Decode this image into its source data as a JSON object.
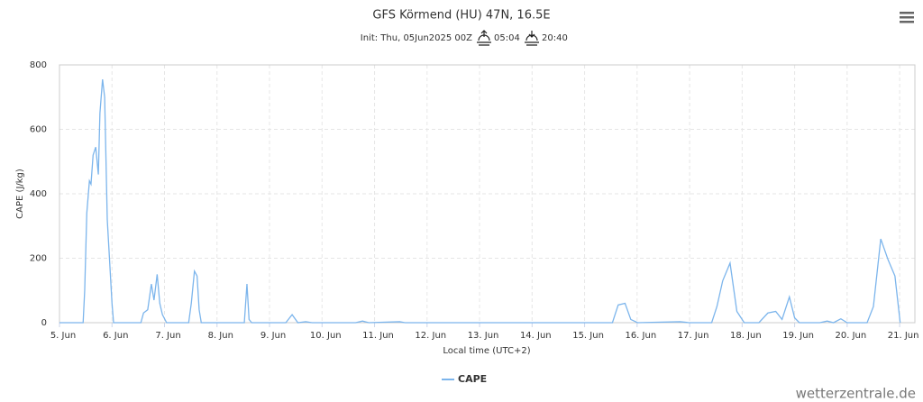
{
  "chart_data": {
    "type": "line",
    "title": "GFS Körmend (HU) 47N, 16.5E",
    "subtitle": {
      "init": "Init: Thu, 05Jun2025 00Z",
      "sunrise": "05:04",
      "sunset": "20:40"
    },
    "x_label": "Local time (UTC+2)",
    "y_label": "CAPE (J/kg)",
    "watermark": "wetterzentrale.de",
    "x": [
      5.0,
      5.45,
      5.48,
      5.52,
      5.57,
      5.6,
      5.64,
      5.69,
      5.74,
      5.77,
      5.82,
      5.86,
      5.91,
      6.0,
      6.03,
      6.55,
      6.6,
      6.68,
      6.75,
      6.8,
      6.86,
      6.91,
      6.96,
      7.04,
      7.46,
      7.51,
      7.57,
      7.62,
      7.66,
      7.7,
      8.52,
      8.57,
      8.61,
      8.66,
      9.31,
      9.43,
      9.54,
      9.69,
      9.81,
      10.64,
      10.77,
      10.89,
      11.48,
      11.58,
      15.53,
      15.64,
      15.77,
      15.88,
      16.01,
      16.82,
      16.99,
      17.42,
      17.52,
      17.63,
      17.77,
      17.9,
      18.04,
      18.32,
      18.49,
      18.64,
      18.76,
      18.9,
      19.0,
      19.09,
      19.48,
      19.62,
      19.74,
      19.88,
      20.0,
      20.38,
      20.5,
      20.64,
      20.78,
      20.91,
      21.01
    ],
    "series": [
      {
        "name": "CAPE",
        "color": "#7cb5ec",
        "values": [
          0,
          0,
          100,
          340,
          440,
          430,
          520,
          545,
          460,
          650,
          755,
          700,
          320,
          60,
          0,
          0,
          30,
          40,
          120,
          70,
          150,
          60,
          25,
          0,
          0,
          60,
          160,
          145,
          40,
          0,
          0,
          120,
          10,
          0,
          0,
          25,
          0,
          3,
          0,
          0,
          5,
          0,
          3,
          0,
          0,
          55,
          60,
          10,
          0,
          3,
          0,
          0,
          50,
          130,
          185,
          35,
          0,
          0,
          30,
          35,
          10,
          80,
          15,
          0,
          0,
          5,
          0,
          12,
          0,
          0,
          50,
          260,
          195,
          145,
          0
        ]
      }
    ],
    "xlim": [
      5,
      21.29
    ],
    "xticks": [
      {
        "value": 5,
        "label": "5. Jun"
      },
      {
        "value": 6,
        "label": "6. Jun"
      },
      {
        "value": 7,
        "label": "7. Jun"
      },
      {
        "value": 8,
        "label": "8. Jun"
      },
      {
        "value": 9,
        "label": "9. Jun"
      },
      {
        "value": 10,
        "label": "10. Jun"
      },
      {
        "value": 11,
        "label": "11. Jun"
      },
      {
        "value": 12,
        "label": "12. Jun"
      },
      {
        "value": 13,
        "label": "13. Jun"
      },
      {
        "value": 14,
        "label": "14. Jun"
      },
      {
        "value": 15,
        "label": "15. Jun"
      },
      {
        "value": 16,
        "label": "16. Jun"
      },
      {
        "value": 17,
        "label": "17. Jun"
      },
      {
        "value": 18,
        "label": "18. Jun"
      },
      {
        "value": 19,
        "label": "19. Jun"
      },
      {
        "value": 20,
        "label": "20. Jun"
      },
      {
        "value": 21,
        "label": "21. Jun"
      }
    ],
    "ylim": [
      0,
      800
    ],
    "yticks": [
      0,
      200,
      400,
      600,
      800
    ],
    "grid": true
  }
}
